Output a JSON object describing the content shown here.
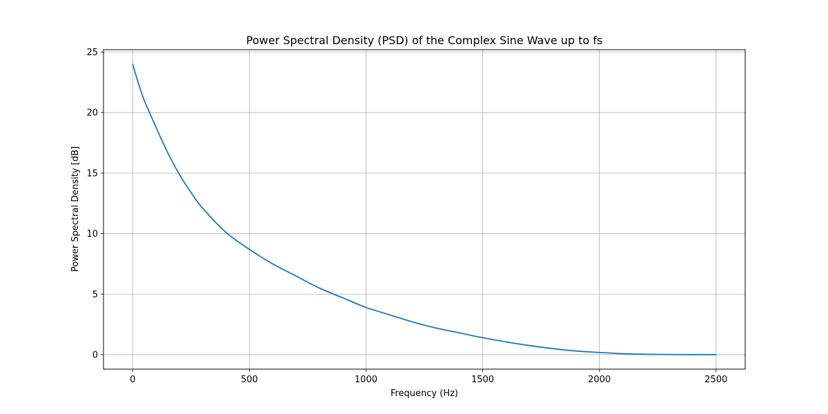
{
  "chart_data": {
    "type": "line",
    "title": "Power Spectral Density (PSD) of the Complex Sine Wave up to fs",
    "xlabel": "Frequency (Hz)",
    "ylabel": "Power Spectral Density [dB]",
    "xlim": [
      -125,
      2625
    ],
    "ylim": [
      -1.2,
      25.2
    ],
    "x_ticks": [
      0,
      500,
      1000,
      1500,
      2000,
      2500
    ],
    "x_tick_labels": [
      "0",
      "500",
      "1000",
      "1500",
      "2000",
      "2500"
    ],
    "y_ticks": [
      0,
      5,
      10,
      15,
      20,
      25
    ],
    "y_tick_labels": [
      "0",
      "5",
      "10",
      "15",
      "20",
      "25"
    ],
    "grid": true,
    "series": [
      {
        "color": "#1f77b4",
        "x": [
          0,
          25,
          50,
          100,
          150,
          200,
          250,
          300,
          400,
          500,
          600,
          700,
          800,
          900,
          1000,
          1100,
          1200,
          1300,
          1400,
          1500,
          1600,
          1700,
          1800,
          1900,
          2000,
          2100,
          2200,
          2300,
          2400,
          2500
        ],
        "y": [
          24.0,
          22.4,
          21.0,
          18.8,
          16.7,
          14.9,
          13.4,
          12.1,
          10.1,
          8.7,
          7.5,
          6.5,
          5.5,
          4.7,
          3.9,
          3.3,
          2.7,
          2.2,
          1.8,
          1.4,
          1.05,
          0.75,
          0.5,
          0.3,
          0.18,
          0.08,
          0.03,
          0.01,
          0.0,
          0.0
        ]
      }
    ]
  }
}
